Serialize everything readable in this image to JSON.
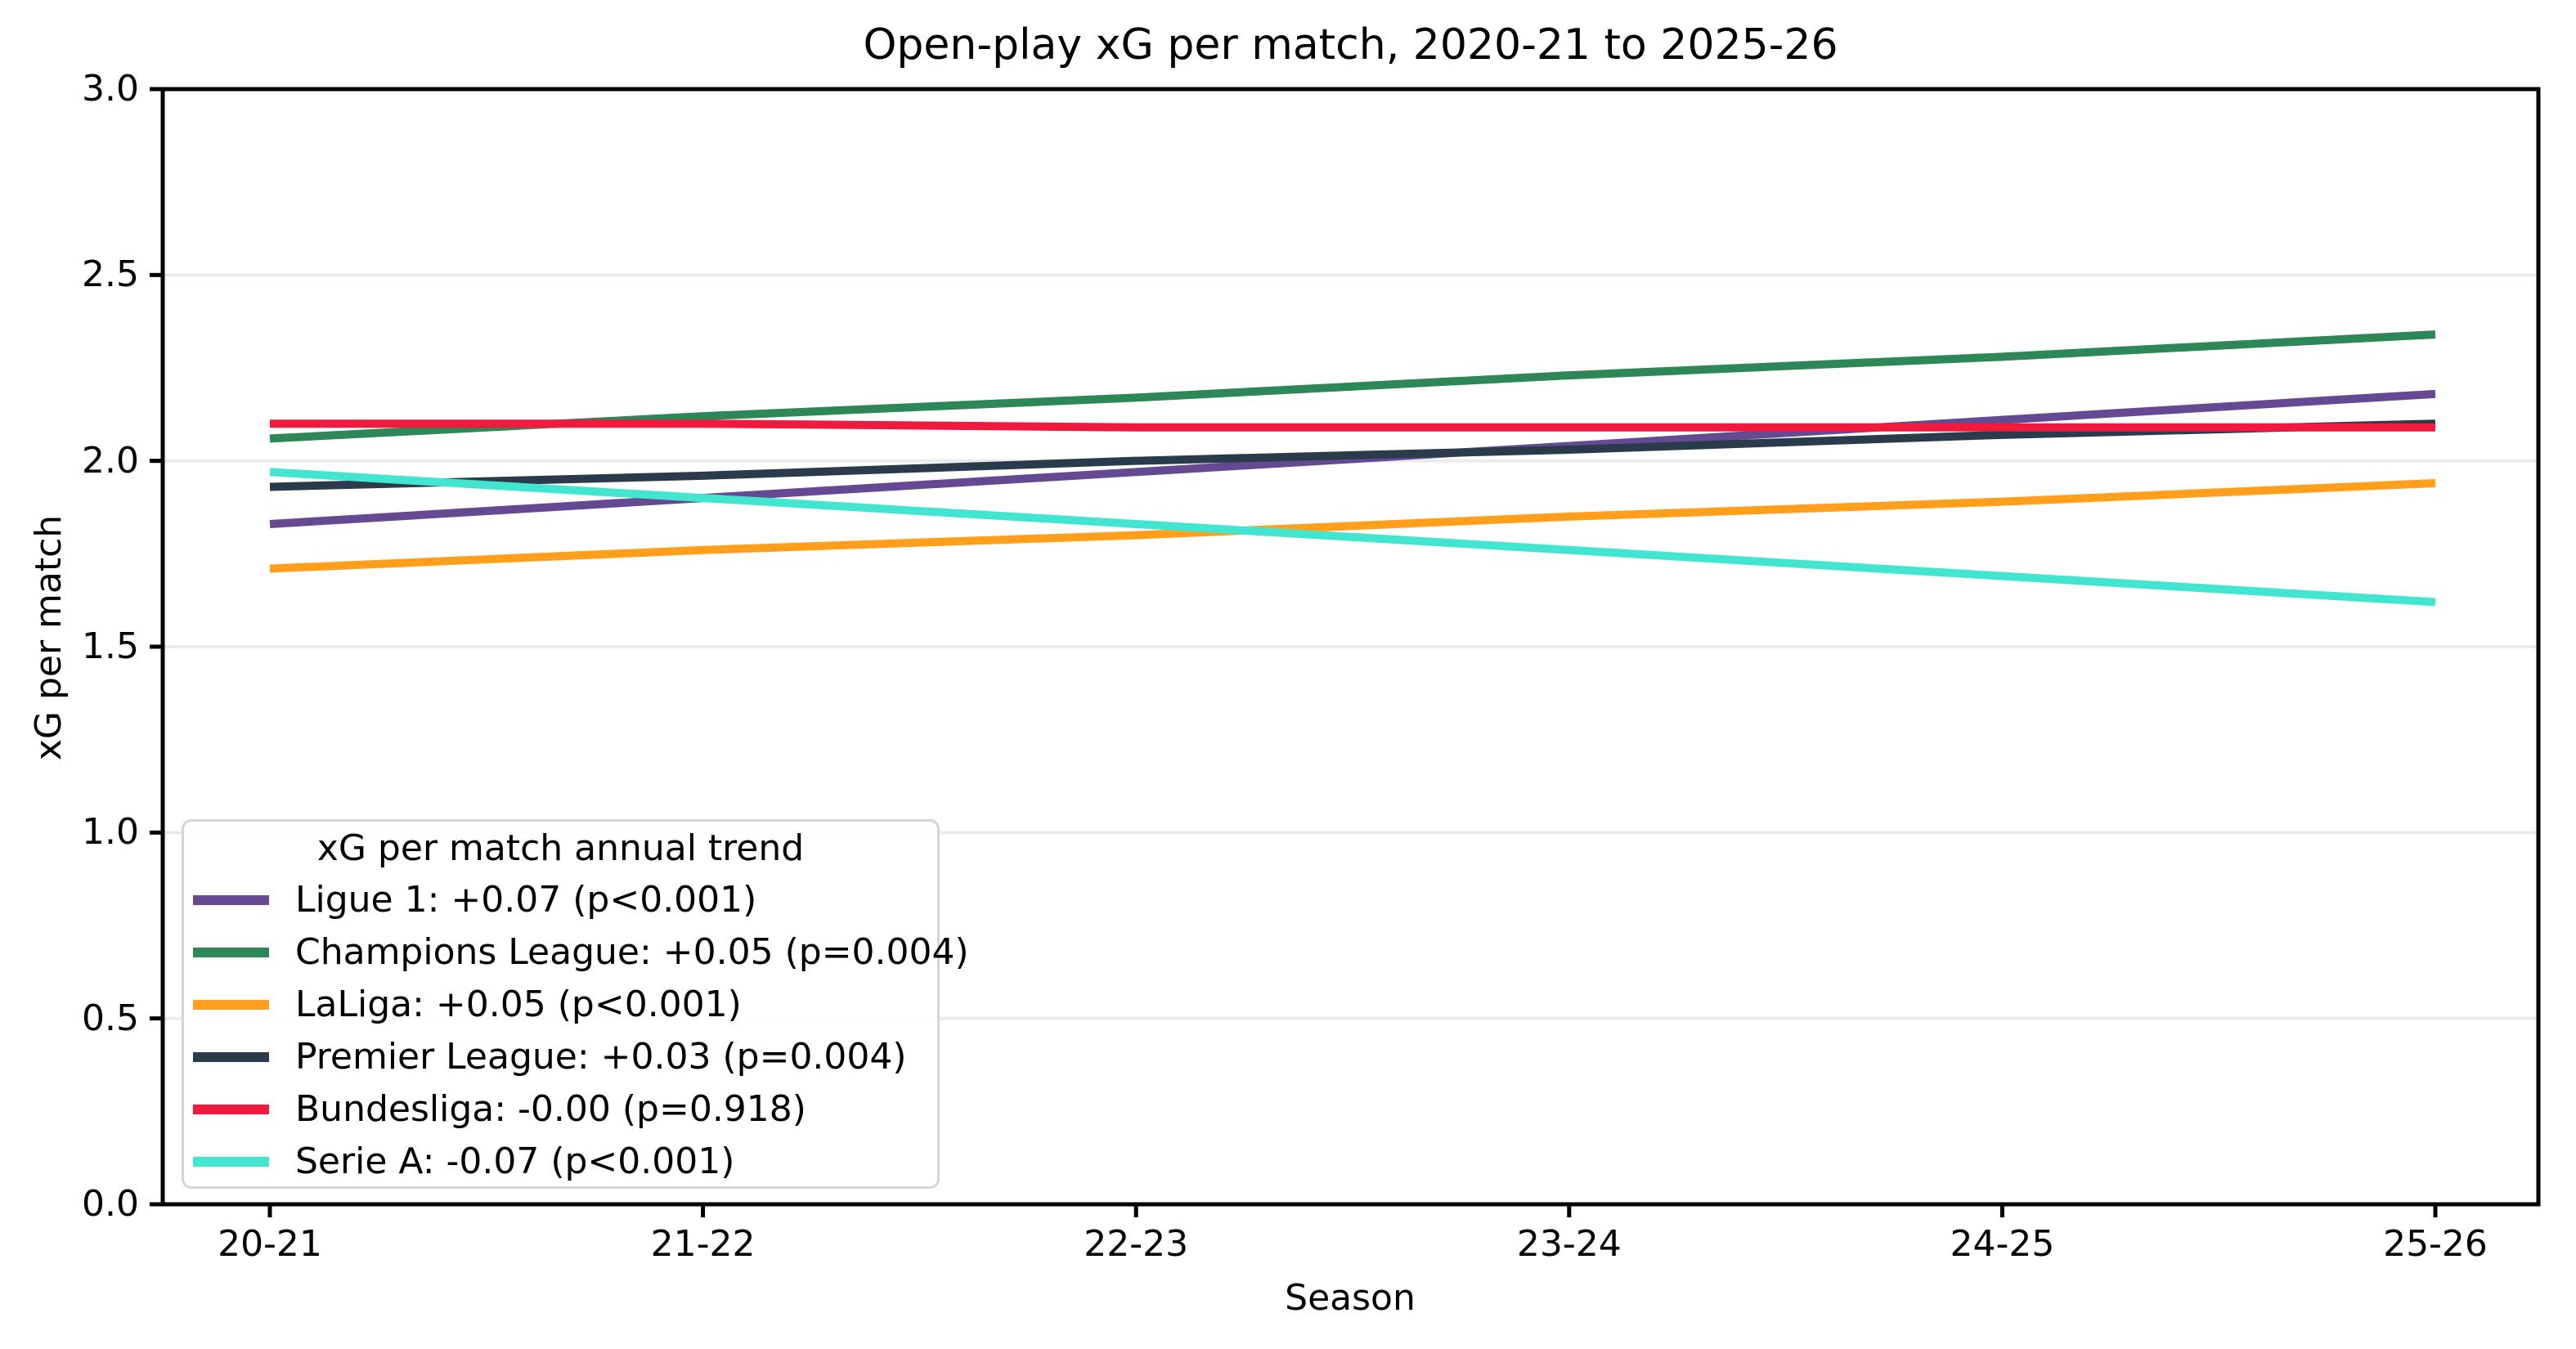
{
  "title": "Open-play xG per match, 2020-21 to 2025-26",
  "chart_data": {
    "type": "line",
    "title": "Open-play xG per match, 2020-21 to 2025-26",
    "xlabel": "Season",
    "ylabel": "xG per match",
    "categories": [
      "20-21",
      "21-22",
      "22-23",
      "23-24",
      "24-25",
      "25-26"
    ],
    "ylim": [
      0.0,
      3.0
    ],
    "yticks": [
      "0.0",
      "0.5",
      "1.0",
      "1.5",
      "2.0",
      "2.5",
      "3.0"
    ],
    "grid": "horizontal",
    "grid_color": "#ebebeb",
    "frame_color": "#000000",
    "legend": {
      "title": "xG per match annual trend",
      "position": "lower-left"
    },
    "series": [
      {
        "name": "Ligue 1",
        "legend_label": "Ligue 1: +0.07 (p<0.001)",
        "slope_per_year": "+0.07",
        "p_value": "p<0.001",
        "color": "#654a93",
        "values": [
          1.83,
          1.9,
          1.97,
          2.04,
          2.11,
          2.18
        ]
      },
      {
        "name": "Champions League",
        "legend_label": "Champions League: +0.05 (p=0.004)",
        "slope_per_year": "+0.05",
        "p_value": "p=0.004",
        "color": "#2e8757",
        "values": [
          2.06,
          2.12,
          2.17,
          2.23,
          2.28,
          2.34
        ]
      },
      {
        "name": "LaLiga",
        "legend_label": "LaLiga: +0.05 (p<0.001)",
        "slope_per_year": "+0.05",
        "p_value": "p<0.001",
        "color": "#ff9f1c",
        "values": [
          1.71,
          1.76,
          1.8,
          1.85,
          1.89,
          1.94
        ]
      },
      {
        "name": "Premier League",
        "legend_label": "Premier League: +0.03 (p=0.004)",
        "slope_per_year": "+0.03",
        "p_value": "p=0.004",
        "color": "#2a3b4c",
        "values": [
          1.93,
          1.96,
          2.0,
          2.03,
          2.07,
          2.1
        ]
      },
      {
        "name": "Bundesliga",
        "legend_label": "Bundesliga: -0.00 (p=0.918)",
        "slope_per_year": "-0.00",
        "p_value": "p=0.918",
        "color": "#ef1a3d",
        "values": [
          2.1,
          2.1,
          2.09,
          2.09,
          2.09,
          2.09
        ]
      },
      {
        "name": "Serie A",
        "legend_label": "Serie A: -0.07 (p<0.001)",
        "slope_per_year": "-0.07",
        "p_value": "p<0.001",
        "color": "#42e6d0",
        "values": [
          1.97,
          1.9,
          1.83,
          1.76,
          1.69,
          1.62
        ]
      }
    ]
  }
}
